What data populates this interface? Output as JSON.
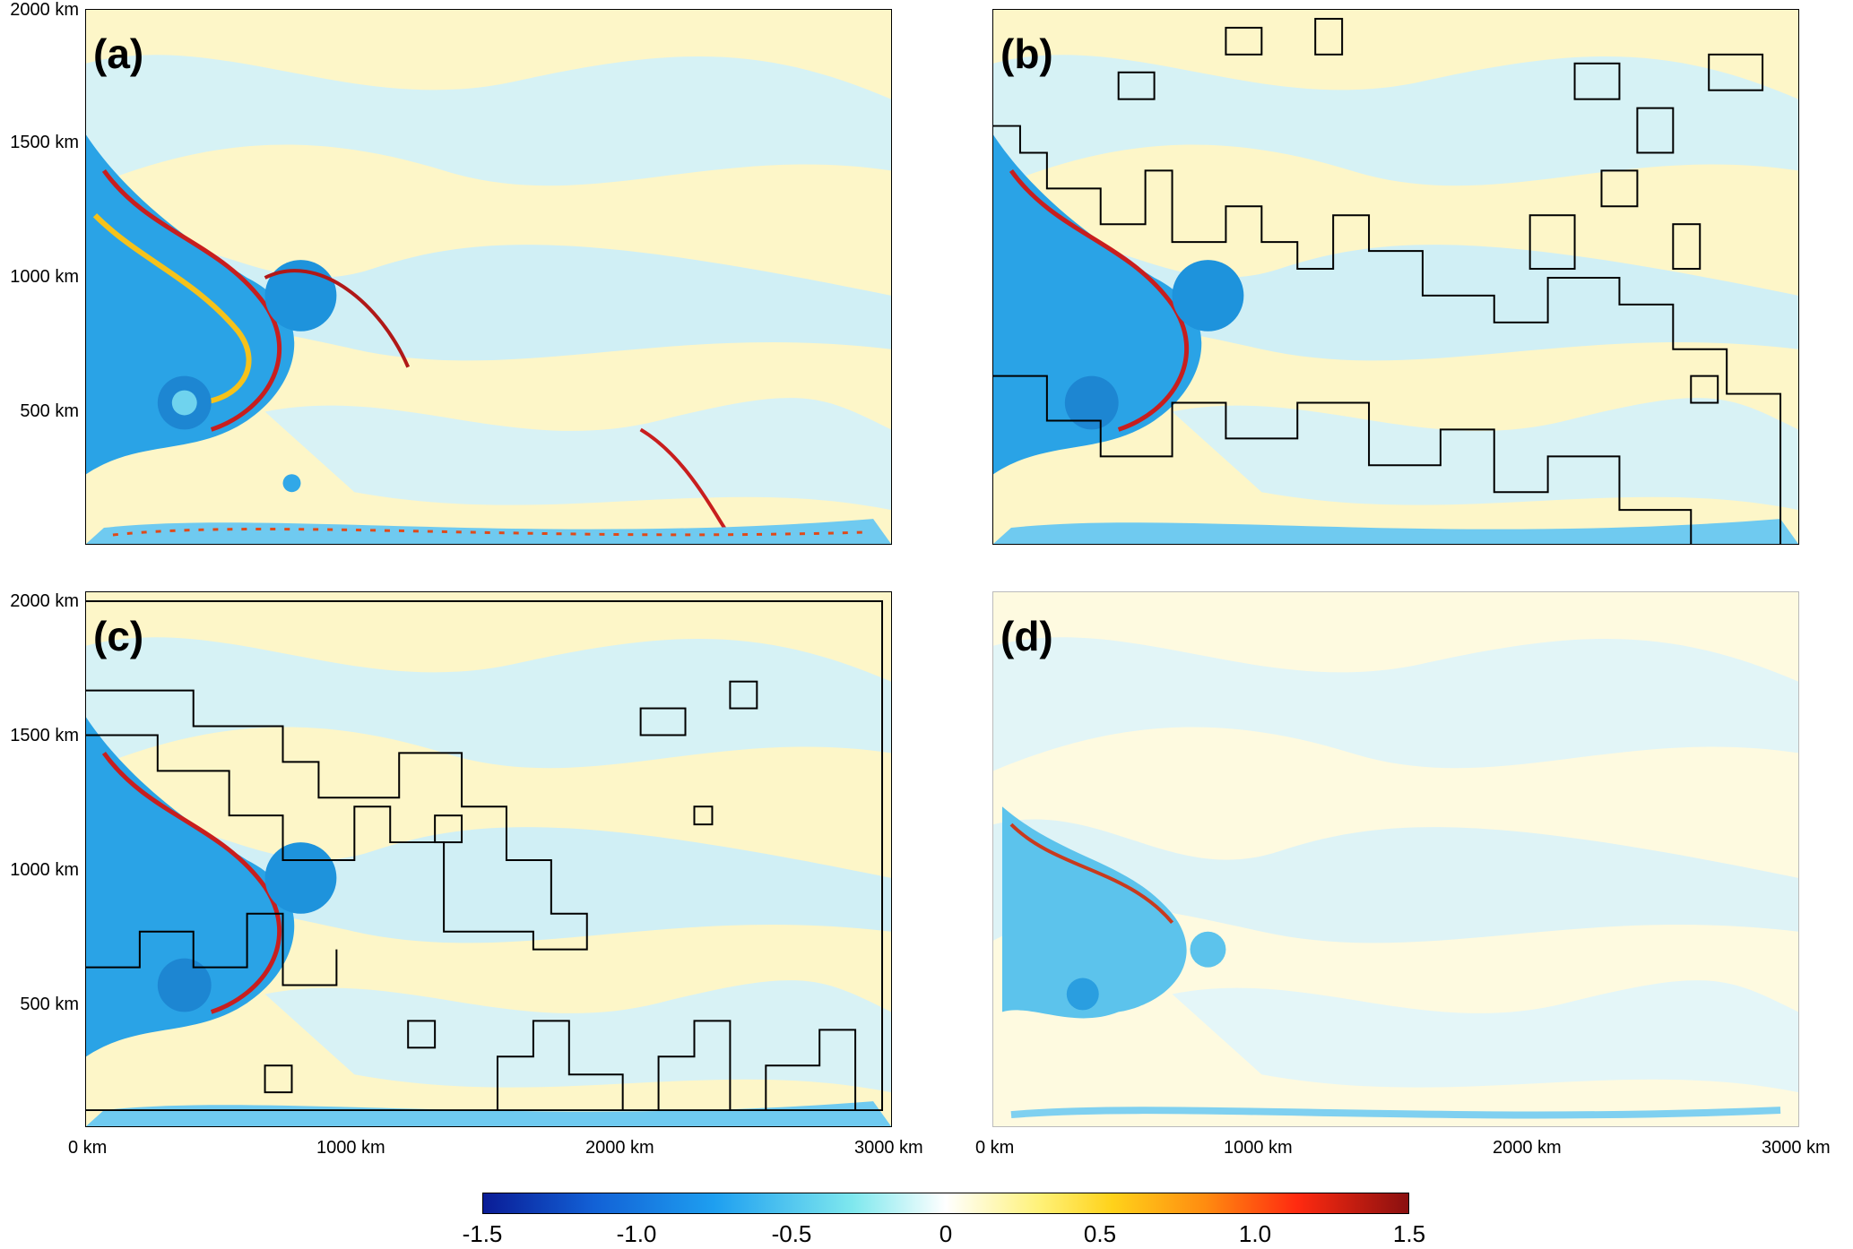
{
  "panels": [
    {
      "id": "a",
      "label": "(a)",
      "outlined": false,
      "coarse": false
    },
    {
      "id": "b",
      "label": "(b)",
      "outlined": true,
      "coarse": false
    },
    {
      "id": "c",
      "label": "(c)",
      "outlined": true,
      "coarse": false
    },
    {
      "id": "d",
      "label": "(d)",
      "outlined": false,
      "coarse": true
    }
  ],
  "y_ticks": [
    "2000 km",
    "1500 km",
    "1000 km",
    "500 km"
  ],
  "x_ticks": [
    "0 km",
    "1000 km",
    "2000 km",
    "3000 km"
  ],
  "colorbar": {
    "ticks": [
      "-1.5",
      "-1.0",
      "-0.5",
      "0",
      "0.5",
      "1.0",
      "1.5"
    ],
    "range": [
      -1.5,
      1.5
    ],
    "colors": [
      "#0a1c96",
      "#1e9ff0",
      "#7fe8ee",
      "#ffffff",
      "#fff27a",
      "#ff8c10",
      "#8a1010"
    ]
  }
}
